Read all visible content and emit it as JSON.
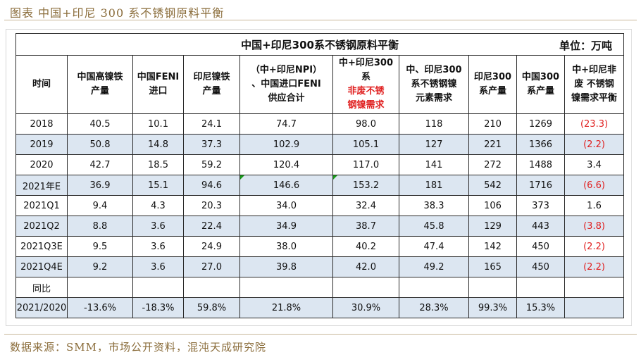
{
  "caption": "图表  中国+印尼 300 系不锈钢原料平衡",
  "table_title": "中国+印尼300系不锈钢原料平衡",
  "unit": "单位：万吨",
  "headers": [
    [
      "时间"
    ],
    [
      "中国高镍铁",
      "产量"
    ],
    [
      "中国FENI",
      "进口"
    ],
    [
      "印尼镍铁",
      "产量"
    ],
    [
      "（中+印尼NPI）",
      "、中国进口FENI",
      "供应合计"
    ],
    [
      "中+印尼300",
      "系非废不锈",
      "钢镍需求"
    ],
    [
      "中、印尼300",
      "系不锈钢镍",
      "元素需求"
    ],
    [
      "印尼300",
      "系产量"
    ],
    [
      "中国300",
      "系产量"
    ],
    [
      "中+印尼非",
      "废 不锈钢",
      "镍需求平衡"
    ]
  ],
  "rows": [
    {
      "cells": [
        "2018",
        "40.5",
        "10.1",
        "24.1",
        "74.7",
        "98.0",
        "118",
        "210",
        "1269",
        "(23.3)"
      ],
      "negative": true
    },
    {
      "cells": [
        "2019",
        "50.8",
        "14.8",
        "37.3",
        "102.9",
        "105.1",
        "127",
        "221",
        "1366",
        "(2.2)"
      ],
      "negative": true
    },
    {
      "cells": [
        "2020",
        "42.7",
        "18.5",
        "59.2",
        "120.4",
        "117.0",
        "141",
        "272",
        "1488",
        "3.4"
      ],
      "negative": false
    },
    {
      "cells": [
        "2021年E",
        "36.9",
        "15.1",
        "94.6",
        "146.6",
        "153.2",
        "181",
        "542",
        "1716",
        "(6.6)"
      ],
      "negative": true
    },
    {
      "cells": [
        "2021Q1",
        "9.4",
        "4.3",
        "20.3",
        "34.0",
        "32.4",
        "38.3",
        "106",
        "373",
        "1.6"
      ],
      "negative": false
    },
    {
      "cells": [
        "2021Q2",
        "8.8",
        "3.6",
        "22.4",
        "34.9",
        "38.7",
        "45.8",
        "129",
        "443",
        "(3.8)"
      ],
      "negative": true
    },
    {
      "cells": [
        "2021Q3E",
        "9.5",
        "3.6",
        "24.9",
        "38.0",
        "40.2",
        "47.4",
        "142",
        "450",
        "(2.2)"
      ],
      "negative": true
    },
    {
      "cells": [
        "2021Q4E",
        "9.2",
        "3.6",
        "27.0",
        "39.8",
        "42.0",
        "49.2",
        "165",
        "450",
        "(2.2)"
      ],
      "negative": true
    },
    {
      "cells": [
        "同比",
        "",
        "",
        "",
        "",
        "",
        "",
        "",
        "",
        ""
      ],
      "negative": false
    },
    {
      "cells": [
        "2021/2020",
        "-13.6%",
        "-18.3%",
        "59.8%",
        "21.8%",
        "30.9%",
        "28.3%",
        "99.3%",
        "15.3%",
        ""
      ],
      "negative": false
    }
  ],
  "source": "数据来源：SMM，市场公开资料，混沌天成研究院",
  "colors": {
    "band": "#dce6f1",
    "negative_text": "#e02020",
    "caption_text": "#8a6c3a"
  }
}
